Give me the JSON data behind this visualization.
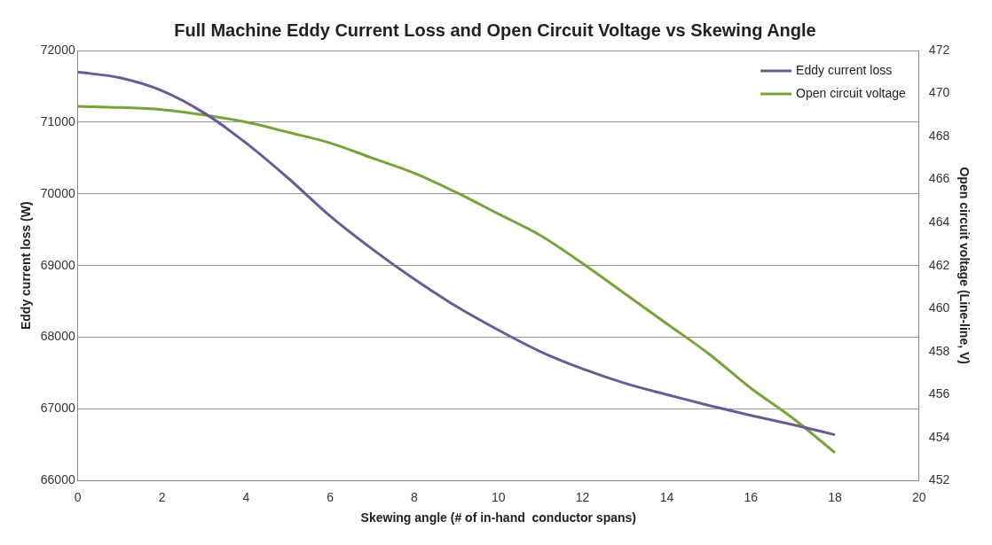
{
  "chart_data": {
    "type": "line",
    "title": "Full Machine Eddy Current Loss and Open Circuit Voltage vs Skewing Angle",
    "xlabel": "Skewing angle (# of in-hand  conductor spans)",
    "ylabel": "Eddy current loss (W)",
    "y2label": "Open circuit voltage (Line-line, V)",
    "x": [
      0,
      1,
      2,
      3,
      4,
      5,
      6,
      7,
      8,
      9,
      10,
      11,
      12,
      13,
      14,
      15,
      16,
      17,
      18
    ],
    "series": [
      {
        "name": "Eddy current loss",
        "color": "#6b5b95",
        "values": [
          71700,
          71620,
          71440,
          71130,
          70710,
          70220,
          69690,
          69230,
          68810,
          68430,
          68100,
          67800,
          67560,
          67360,
          67200,
          67050,
          66910,
          66780,
          66640
        ]
      },
      {
        "name": "Open circuit voltage",
        "color": "#77a33a",
        "axis": "y2",
        "values": [
          469.4,
          469.35,
          469.25,
          469.0,
          468.67,
          468.2,
          467.7,
          467.0,
          466.3,
          465.4,
          464.4,
          463.4,
          462.1,
          460.7,
          459.3,
          457.9,
          456.3,
          454.9,
          453.3
        ]
      }
    ],
    "xlim": [
      0,
      20
    ],
    "xticks": [
      0,
      2,
      4,
      6,
      8,
      10,
      12,
      14,
      16,
      18,
      20
    ],
    "ylim": [
      66000,
      72000
    ],
    "yticks": [
      66000,
      67000,
      68000,
      69000,
      70000,
      71000,
      72000
    ],
    "y2lim": [
      452,
      472
    ],
    "y2ticks": [
      452,
      454,
      456,
      458,
      460,
      462,
      464,
      466,
      468,
      470,
      472
    ],
    "grid": "y",
    "legend": "top right",
    "marker": "none",
    "line_style": "solid"
  }
}
